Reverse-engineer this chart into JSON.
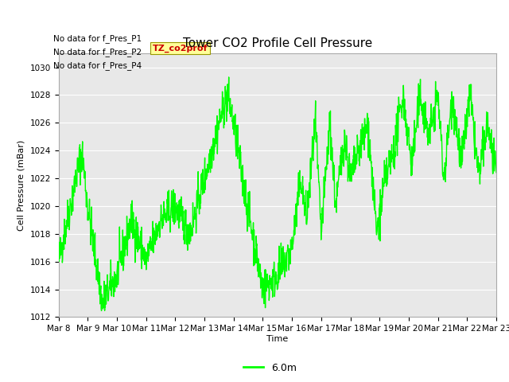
{
  "title": "Tower CO2 Profile Cell Pressure",
  "ylabel": "Cell Pressure (mBar)",
  "xlabel": "Time",
  "ylim": [
    1012,
    1031
  ],
  "line_color": "#00ff00",
  "line_width": 1.0,
  "legend_label": "6.0m",
  "no_data_lines": [
    "No data for f_Pres_P1",
    "No data for f_Pres_P2",
    "No data for f_Pres_P4"
  ],
  "tz_label": "TZ_co2prof",
  "x_tick_labels": [
    "Mar 8",
    "Mar 9",
    "Mar 10",
    "Mar 11",
    "Mar 12",
    "Mar 13",
    "Mar 14",
    "Mar 15",
    "Mar 16",
    "Mar 17",
    "Mar 18",
    "Mar 19",
    "Mar 20",
    "Mar 21",
    "Mar 22",
    "Mar 23"
  ],
  "background_color": "#ffffff",
  "plot_bg_color": "#e8e8e8",
  "grid_color": "#ffffff",
  "title_fontsize": 11,
  "axis_fontsize": 8,
  "tick_fontsize": 7.5
}
